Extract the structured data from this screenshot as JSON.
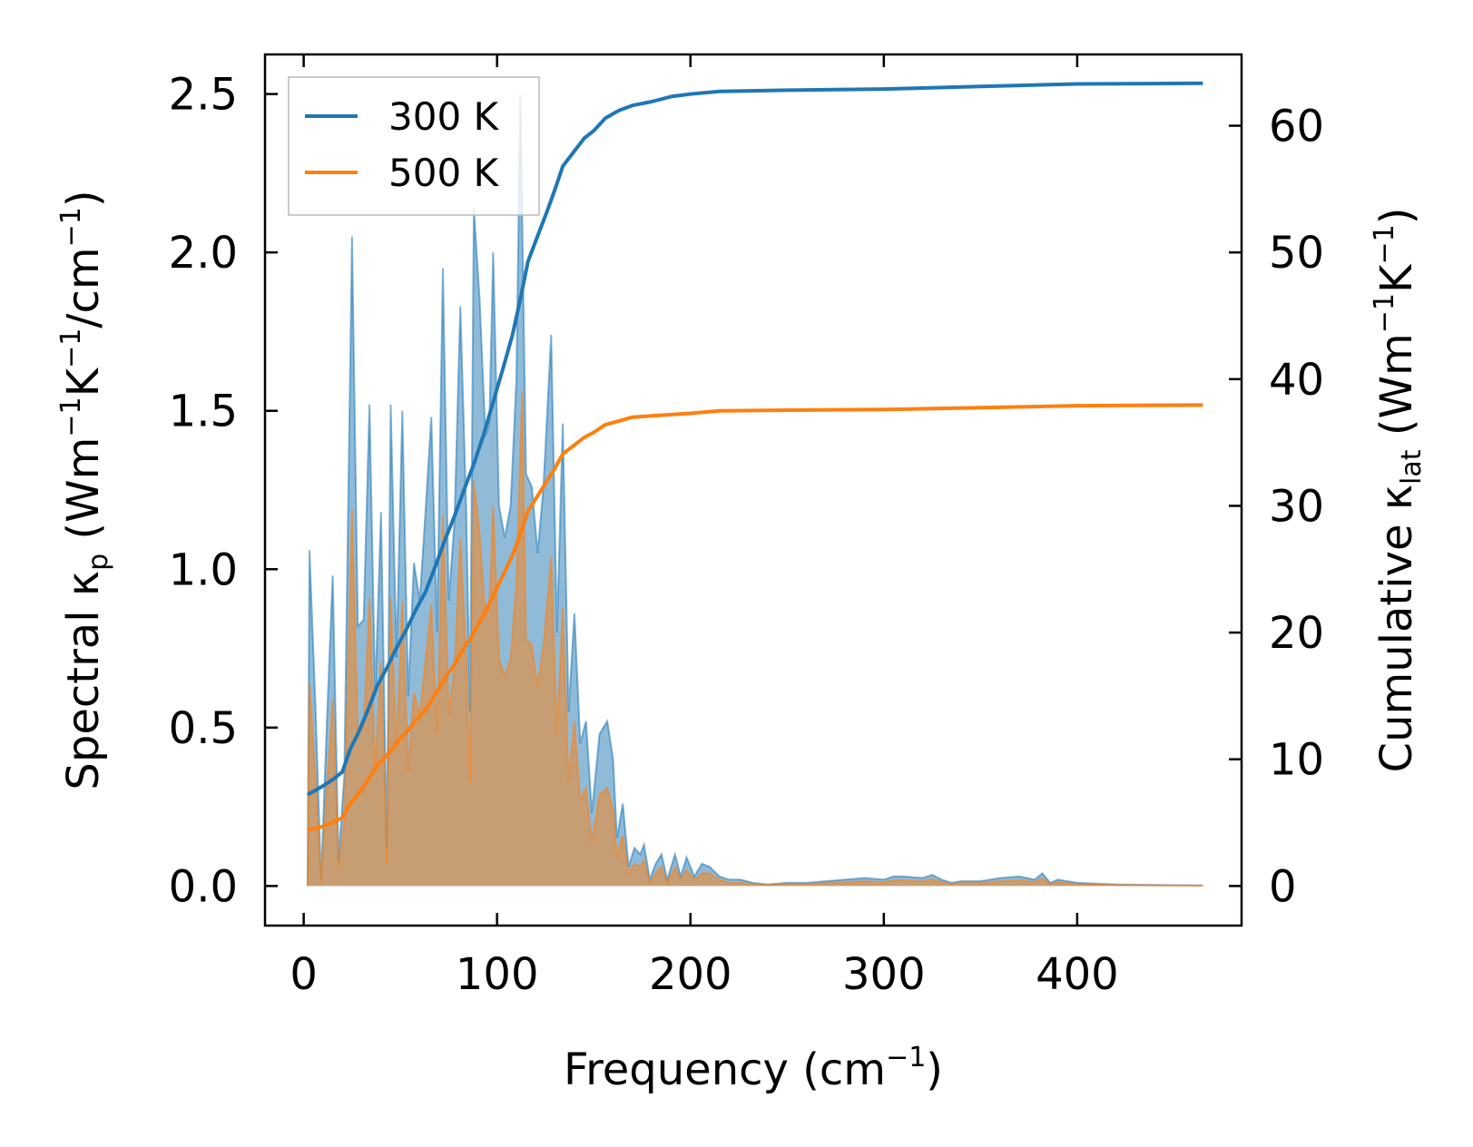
{
  "chart_data": {
    "type": "line",
    "xlabel": {
      "base": "Frequency (cm",
      "sup": "−1",
      "tail": ")"
    },
    "ylabel_left": {
      "parts": [
        "Spectral κ",
        "p",
        " (Wm",
        "−1",
        "K",
        "−1",
        "/cm",
        "−1",
        ")"
      ]
    },
    "ylabel_right": {
      "parts": [
        "Cumulative κ",
        "lat",
        " (Wm",
        "−1",
        "K",
        "−1",
        ")"
      ]
    },
    "xlim": [
      -20,
      485
    ],
    "ylim_left": [
      -0.125,
      2.625
    ],
    "ylim_right": [
      -3.125,
      65.625
    ],
    "x_ticks": [
      0,
      100,
      200,
      300,
      400
    ],
    "x_tick_labels": [
      "0",
      "100",
      "200",
      "300",
      "400"
    ],
    "y_left_ticks": [
      0.0,
      0.5,
      1.0,
      1.5,
      2.0,
      2.5
    ],
    "y_left_tick_labels": [
      "0.0",
      "0.5",
      "1.0",
      "1.5",
      "2.0",
      "2.5"
    ],
    "y_right_ticks": [
      0,
      10,
      20,
      30,
      40,
      50,
      60
    ],
    "y_right_tick_labels": [
      "0",
      "10",
      "20",
      "30",
      "40",
      "50",
      "60"
    ],
    "legend": {
      "placement": "top-left",
      "entries": [
        "300 K",
        "500 K"
      ]
    },
    "colors": {
      "300 K": "#1f77b4",
      "500 K": "#ff7f0e"
    },
    "series": [
      {
        "name": "300 K",
        "spectral": [
          [
            2,
            0
          ],
          [
            3,
            1.06
          ],
          [
            6,
            0.58
          ],
          [
            9,
            0.02
          ],
          [
            12,
            0.52
          ],
          [
            15,
            0.98
          ],
          [
            18,
            0.08
          ],
          [
            21,
            0.35
          ],
          [
            25,
            2.05
          ],
          [
            28,
            0.82
          ],
          [
            31,
            0.84
          ],
          [
            34,
            1.52
          ],
          [
            37,
            0.6
          ],
          [
            40,
            1.18
          ],
          [
            43,
            0.12
          ],
          [
            45,
            1.52
          ],
          [
            48,
            0.72
          ],
          [
            51,
            1.5
          ],
          [
            54,
            0.6
          ],
          [
            57,
            1.02
          ],
          [
            60,
            0.9
          ],
          [
            63,
            1.18
          ],
          [
            66,
            1.48
          ],
          [
            69,
            0.8
          ],
          [
            72,
            1.95
          ],
          [
            75,
            0.9
          ],
          [
            78,
            1.15
          ],
          [
            81,
            1.83
          ],
          [
            84,
            1.2
          ],
          [
            86,
            0.55
          ],
          [
            88,
            2.14
          ],
          [
            91,
            1.85
          ],
          [
            94,
            1.42
          ],
          [
            96,
            1.46
          ],
          [
            98,
            2.0
          ],
          [
            101,
            1.2
          ],
          [
            104,
            1.1
          ],
          [
            107,
            1.2
          ],
          [
            110,
            1.6
          ],
          [
            112,
            2.5
          ],
          [
            115,
            1.3
          ],
          [
            118,
            1.26
          ],
          [
            121,
            1.05
          ],
          [
            124,
            1.26
          ],
          [
            128,
            1.74
          ],
          [
            131,
            0.8
          ],
          [
            134,
            1.46
          ],
          [
            137,
            0.55
          ],
          [
            140,
            0.86
          ],
          [
            143,
            0.45
          ],
          [
            146,
            0.52
          ],
          [
            149,
            0.23
          ],
          [
            153,
            0.48
          ],
          [
            157,
            0.52
          ],
          [
            160,
            0.4
          ],
          [
            162,
            0.15
          ],
          [
            165,
            0.26
          ],
          [
            168,
            0.06
          ],
          [
            171,
            0.12
          ],
          [
            174,
            0.1
          ],
          [
            176,
            0.13
          ],
          [
            179,
            0.02
          ],
          [
            182,
            0.07
          ],
          [
            185,
            0.1
          ],
          [
            188,
            0.02
          ],
          [
            192,
            0.1
          ],
          [
            195,
            0.03
          ],
          [
            198,
            0.09
          ],
          [
            202,
            0.03
          ],
          [
            206,
            0.07
          ],
          [
            210,
            0.06
          ],
          [
            215,
            0.03
          ],
          [
            220,
            0.02
          ],
          [
            226,
            0.02
          ],
          [
            232,
            0.01
          ],
          [
            240,
            0.005
          ],
          [
            250,
            0.01
          ],
          [
            260,
            0.01
          ],
          [
            270,
            0.015
          ],
          [
            280,
            0.02
          ],
          [
            290,
            0.025
          ],
          [
            300,
            0.02
          ],
          [
            305,
            0.03
          ],
          [
            310,
            0.03
          ],
          [
            320,
            0.025
          ],
          [
            325,
            0.035
          ],
          [
            330,
            0.02
          ],
          [
            335,
            0.01
          ],
          [
            340,
            0.015
          ],
          [
            350,
            0.015
          ],
          [
            360,
            0.025
          ],
          [
            370,
            0.03
          ],
          [
            378,
            0.02
          ],
          [
            382,
            0.04
          ],
          [
            386,
            0.01
          ],
          [
            390,
            0.02
          ],
          [
            400,
            0.01
          ],
          [
            420,
            0.005
          ],
          [
            440,
            0.003
          ],
          [
            465,
            0.002
          ]
        ],
        "cumulative": [
          [
            2,
            7.2
          ],
          [
            10,
            7.9
          ],
          [
            15,
            8.4
          ],
          [
            20,
            9.0
          ],
          [
            24,
            10.8
          ],
          [
            28,
            12.0
          ],
          [
            33,
            13.8
          ],
          [
            38,
            15.8
          ],
          [
            43,
            17.2
          ],
          [
            48,
            18.8
          ],
          [
            53,
            20.2
          ],
          [
            58,
            21.8
          ],
          [
            63,
            23.2
          ],
          [
            68,
            25.2
          ],
          [
            73,
            27.3
          ],
          [
            78,
            29.2
          ],
          [
            83,
            31.3
          ],
          [
            88,
            33.3
          ],
          [
            93,
            35.6
          ],
          [
            98,
            38.2
          ],
          [
            103,
            40.8
          ],
          [
            108,
            43.5
          ],
          [
            112,
            46.3
          ],
          [
            116,
            49.3
          ],
          [
            121,
            51.3
          ],
          [
            126,
            53.3
          ],
          [
            130,
            55.0
          ],
          [
            134,
            56.8
          ],
          [
            140,
            58.0
          ],
          [
            145,
            59.0
          ],
          [
            150,
            59.6
          ],
          [
            156,
            60.6
          ],
          [
            163,
            61.2
          ],
          [
            170,
            61.6
          ],
          [
            180,
            61.9
          ],
          [
            190,
            62.3
          ],
          [
            200,
            62.5
          ],
          [
            215,
            62.7
          ],
          [
            250,
            62.8
          ],
          [
            300,
            62.9
          ],
          [
            350,
            63.1
          ],
          [
            400,
            63.3
          ],
          [
            465,
            63.35
          ]
        ]
      },
      {
        "name": "500 K",
        "spectral": [
          [
            2,
            0
          ],
          [
            3,
            0.64
          ],
          [
            6,
            0.35
          ],
          [
            9,
            0.01
          ],
          [
            12,
            0.31
          ],
          [
            15,
            0.59
          ],
          [
            18,
            0.05
          ],
          [
            21,
            0.21
          ],
          [
            25,
            1.19
          ],
          [
            28,
            0.49
          ],
          [
            31,
            0.5
          ],
          [
            34,
            0.91
          ],
          [
            37,
            0.36
          ],
          [
            40,
            0.71
          ],
          [
            43,
            0.07
          ],
          [
            45,
            0.91
          ],
          [
            48,
            0.43
          ],
          [
            51,
            0.9
          ],
          [
            54,
            0.36
          ],
          [
            57,
            0.61
          ],
          [
            60,
            0.54
          ],
          [
            63,
            0.71
          ],
          [
            66,
            0.89
          ],
          [
            69,
            0.48
          ],
          [
            72,
            1.17
          ],
          [
            75,
            0.54
          ],
          [
            78,
            0.69
          ],
          [
            81,
            1.1
          ],
          [
            84,
            0.72
          ],
          [
            86,
            0.33
          ],
          [
            88,
            1.28
          ],
          [
            91,
            1.11
          ],
          [
            94,
            0.85
          ],
          [
            96,
            0.88
          ],
          [
            98,
            1.2
          ],
          [
            101,
            0.72
          ],
          [
            104,
            0.66
          ],
          [
            107,
            0.72
          ],
          [
            110,
            0.96
          ],
          [
            113,
            1.56
          ],
          [
            115,
            0.78
          ],
          [
            118,
            0.76
          ],
          [
            121,
            0.63
          ],
          [
            124,
            0.76
          ],
          [
            128,
            1.04
          ],
          [
            131,
            0.48
          ],
          [
            134,
            0.88
          ],
          [
            137,
            0.33
          ],
          [
            140,
            0.52
          ],
          [
            143,
            0.27
          ],
          [
            146,
            0.31
          ],
          [
            149,
            0.14
          ],
          [
            153,
            0.29
          ],
          [
            157,
            0.31
          ],
          [
            160,
            0.24
          ],
          [
            162,
            0.09
          ],
          [
            165,
            0.16
          ],
          [
            168,
            0.04
          ],
          [
            171,
            0.07
          ],
          [
            174,
            0.06
          ],
          [
            176,
            0.08
          ],
          [
            179,
            0.01
          ],
          [
            182,
            0.04
          ],
          [
            185,
            0.06
          ],
          [
            188,
            0.01
          ],
          [
            192,
            0.06
          ],
          [
            195,
            0.02
          ],
          [
            198,
            0.05
          ],
          [
            202,
            0.02
          ],
          [
            206,
            0.04
          ],
          [
            210,
            0.04
          ],
          [
            215,
            0.02
          ],
          [
            220,
            0.01
          ],
          [
            226,
            0.01
          ],
          [
            232,
            0.006
          ],
          [
            240,
            0.003
          ],
          [
            250,
            0.006
          ],
          [
            260,
            0.006
          ],
          [
            270,
            0.009
          ],
          [
            280,
            0.012
          ],
          [
            290,
            0.015
          ],
          [
            300,
            0.012
          ],
          [
            305,
            0.018
          ],
          [
            310,
            0.018
          ],
          [
            320,
            0.015
          ],
          [
            325,
            0.021
          ],
          [
            330,
            0.012
          ],
          [
            335,
            0.006
          ],
          [
            340,
            0.009
          ],
          [
            350,
            0.009
          ],
          [
            360,
            0.015
          ],
          [
            370,
            0.018
          ],
          [
            378,
            0.012
          ],
          [
            382,
            0.024
          ],
          [
            386,
            0.006
          ],
          [
            390,
            0.012
          ],
          [
            400,
            0.006
          ],
          [
            420,
            0.003
          ],
          [
            440,
            0.002
          ],
          [
            465,
            0.001
          ]
        ],
        "cumulative": [
          [
            2,
            4.4
          ],
          [
            10,
            4.7
          ],
          [
            15,
            5.0
          ],
          [
            20,
            5.4
          ],
          [
            24,
            6.5
          ],
          [
            28,
            7.2
          ],
          [
            33,
            8.3
          ],
          [
            38,
            9.5
          ],
          [
            43,
            10.3
          ],
          [
            48,
            11.3
          ],
          [
            53,
            12.1
          ],
          [
            58,
            13.1
          ],
          [
            63,
            13.9
          ],
          [
            68,
            15.1
          ],
          [
            73,
            16.4
          ],
          [
            78,
            17.5
          ],
          [
            83,
            18.8
          ],
          [
            88,
            20.0
          ],
          [
            93,
            21.4
          ],
          [
            98,
            22.9
          ],
          [
            103,
            24.5
          ],
          [
            108,
            26.1
          ],
          [
            112,
            27.8
          ],
          [
            116,
            29.6
          ],
          [
            121,
            30.8
          ],
          [
            126,
            32.0
          ],
          [
            130,
            33.0
          ],
          [
            134,
            34.1
          ],
          [
            140,
            34.8
          ],
          [
            145,
            35.4
          ],
          [
            150,
            35.8
          ],
          [
            156,
            36.4
          ],
          [
            163,
            36.7
          ],
          [
            170,
            37.0
          ],
          [
            180,
            37.1
          ],
          [
            190,
            37.2
          ],
          [
            200,
            37.3
          ],
          [
            215,
            37.5
          ],
          [
            250,
            37.55
          ],
          [
            300,
            37.6
          ],
          [
            350,
            37.75
          ],
          [
            400,
            37.9
          ],
          [
            465,
            37.95
          ]
        ]
      }
    ]
  }
}
